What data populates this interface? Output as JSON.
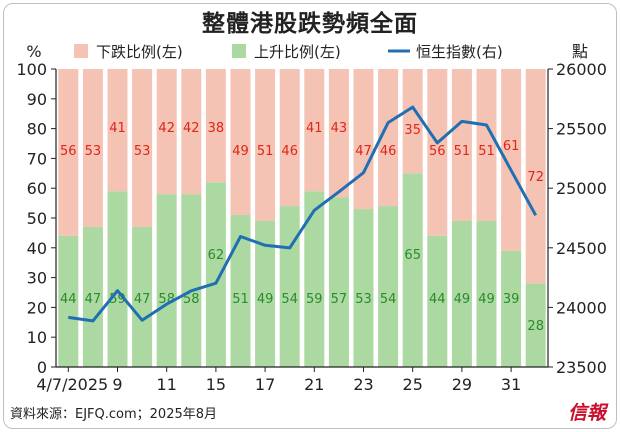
{
  "chart_data": {
    "type": "bar",
    "title": "整體港股跌勢頻全面",
    "left_axis_label": "%",
    "right_axis_label": "點",
    "x_tick_labels": [
      "4/7/2025",
      "9",
      "11",
      "15",
      "17",
      "21",
      "23",
      "25",
      "29",
      "31"
    ],
    "x_tick_positions": [
      0,
      2,
      4,
      6,
      8,
      10,
      12,
      14,
      16,
      18
    ],
    "left_ylim": [
      0,
      100
    ],
    "left_ticks": [
      0,
      10,
      20,
      30,
      40,
      50,
      60,
      70,
      80,
      90,
      100
    ],
    "right_ylim": [
      23500,
      26000
    ],
    "right_ticks": [
      23500,
      24000,
      24500,
      25000,
      25500,
      26000
    ],
    "legend_placement": "top",
    "series": [
      {
        "name": "下跌比例(左)",
        "color": "#f4c3b4",
        "label_color": "#e1251b",
        "values": [
          56,
          53,
          41,
          53,
          42,
          42,
          38,
          49,
          51,
          46,
          41,
          43,
          47,
          46,
          35,
          56,
          51,
          51,
          61,
          72
        ]
      },
      {
        "name": "上升比例(左)",
        "color": "#acd8a2",
        "label_color": "#2a8c2a",
        "values": [
          44,
          47,
          59,
          47,
          58,
          58,
          62,
          51,
          49,
          54,
          59,
          57,
          53,
          54,
          65,
          44,
          49,
          49,
          39,
          28
        ]
      },
      {
        "name": "恒生指數(右)",
        "color": "#1f6fb2",
        "values": [
          23916,
          23887,
          24140,
          23893,
          24028,
          24139,
          24203,
          24595,
          24521,
          24499,
          24815,
          24970,
          25130,
          25550,
          25680,
          25380,
          25560,
          25530,
          25150,
          24773
        ]
      }
    ]
  },
  "footer": {
    "source": "資料來源：EJFQ.com；2025年8月",
    "logo": "信報"
  }
}
